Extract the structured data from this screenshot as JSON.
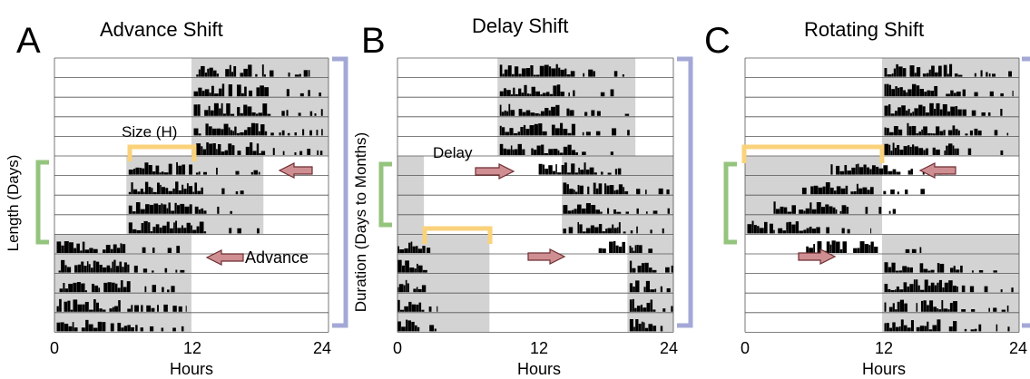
{
  "panels": [
    {
      "letter": "A",
      "title": "Advance Shift",
      "x_axis": {
        "ticks": [
          "0",
          "12",
          "24"
        ],
        "label": "Hours"
      },
      "annotations": {
        "size": "Size (H)",
        "advance": "Advance",
        "length": "Length (Days)"
      },
      "night_shading": [
        {
          "from_day": 0,
          "to_day": 5,
          "start_h": 12,
          "end_h": 24
        },
        {
          "from_day": 5,
          "to_day": 9,
          "start_h": 6.3,
          "end_h": 18.3
        },
        {
          "from_day": 9,
          "to_day": 14,
          "start_h": 0,
          "end_h": 12
        }
      ],
      "activity": [
        {
          "from_day": 0,
          "to_day": 5,
          "onset_h": 12.2,
          "offset_h": 23.5
        },
        {
          "from_day": 5,
          "to_day": 9,
          "onset_h": 6.5,
          "offset_h": 18.0
        },
        {
          "from_day": 9,
          "to_day": 14,
          "onset_h": 0.2,
          "offset_h": 11.5
        }
      ]
    },
    {
      "letter": "B",
      "title": "Delay Shift",
      "x_axis": {
        "ticks": [
          "0",
          "12",
          "24"
        ],
        "label": "Hours"
      },
      "annotations": {
        "delay": "Delay",
        "duration": "Duration (Days to Months)"
      },
      "night_shading": [
        {
          "from_day": 0,
          "to_day": 5,
          "start_h": 8.7,
          "end_h": 20.7
        },
        {
          "from_day": 5,
          "to_day": 9,
          "start_h": 0,
          "end_h": 2.3
        },
        {
          "from_day": 5,
          "to_day": 9,
          "start_h": 14.3,
          "end_h": 24
        },
        {
          "from_day": 9,
          "to_day": 14,
          "start_h": 0,
          "end_h": 8.0
        },
        {
          "from_day": 9,
          "to_day": 14,
          "start_h": 20.0,
          "end_h": 24
        }
      ],
      "activity": [
        {
          "from_day": 0,
          "to_day": 5,
          "onset_h": 8.9,
          "offset_h": 20.3
        },
        {
          "from_day": 5,
          "to_day": 6,
          "onset_h": 12.0,
          "offset_h": 21.5
        },
        {
          "from_day": 6,
          "to_day": 9,
          "onset_h": 14.4,
          "offset_h": 24
        },
        {
          "from_day": 9,
          "to_day": 10,
          "onset_h": 17.5,
          "offset_h": 24
        },
        {
          "from_day": 10,
          "to_day": 14,
          "onset_h": 20.2,
          "offset_h": 24
        },
        {
          "from_day": 9,
          "to_day": 14,
          "onset_h": 0,
          "offset_h": 3.5
        }
      ]
    },
    {
      "letter": "C",
      "title": "Rotating Shift",
      "x_axis": {
        "ticks": [
          "0",
          "12",
          "24"
        ],
        "label": "Hours"
      },
      "night_shading": [
        {
          "from_day": 0,
          "to_day": 5,
          "start_h": 12,
          "end_h": 24
        },
        {
          "from_day": 5,
          "to_day": 9,
          "start_h": 0,
          "end_h": 12
        },
        {
          "from_day": 9,
          "to_day": 14,
          "start_h": 12,
          "end_h": 24
        }
      ],
      "activity": [
        {
          "from_day": 0,
          "to_day": 5,
          "onset_h": 12.2,
          "offset_h": 23.5
        },
        {
          "from_day": 5,
          "to_day": 6,
          "onset_h": 7.5,
          "offset_h": 18.5
        },
        {
          "from_day": 6,
          "to_day": 7,
          "onset_h": 5.0,
          "offset_h": 16.0
        },
        {
          "from_day": 7,
          "to_day": 8,
          "onset_h": 2.5,
          "offset_h": 13.5
        },
        {
          "from_day": 8,
          "to_day": 9,
          "onset_h": 0.2,
          "offset_h": 11.0
        },
        {
          "from_day": 9,
          "to_day": 10,
          "onset_h": 5.0,
          "offset_h": 16.0
        },
        {
          "from_day": 10,
          "to_day": 14,
          "onset_h": 12.2,
          "offset_h": 23.5
        }
      ]
    }
  ],
  "colors": {
    "night": "#d3d3d3",
    "activity": "#000000",
    "grid": "#555555",
    "size_bracket": "#f9d27a",
    "length_bracket": "#94c47d",
    "duration_bracket": "#a3a8d6",
    "arrow_fill": "#cf8f92",
    "arrow_stroke": "#6e2f33"
  }
}
